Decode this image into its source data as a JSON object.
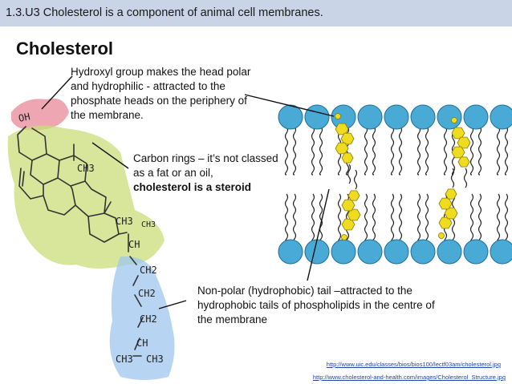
{
  "header": {
    "title": "1.3.U3 Cholesterol is a component of animal cell membranes."
  },
  "slide": {
    "heading": "Cholesterol"
  },
  "annotations": {
    "hydroxyl": "Hydroxyl group makes the head polar and hydrophilic - attracted to the phosphate heads on the periphery of the membrane.",
    "rings_plain": "Carbon rings – it’s not classed as a fat or an oil,",
    "rings_bold": "cholesterol is a steroid",
    "tail": "Non-polar (hydrophobic) tail –attracted to the hydrophobic tails of phospholipids in the centre of the membrane"
  },
  "structure_labels": {
    "oh": "OH",
    "ch3_a": "CH3",
    "ch3_b": "CH3",
    "ch3_c": "CH3",
    "ch_a": "CH",
    "ch2_a": "CH2",
    "ch2_b": "CH2",
    "ch2_c": "CH2",
    "ch_b": "CH",
    "ch3_d": "CH3",
    "ch3_e": "CH3"
  },
  "sources": [
    "http://www.uic.edu/classes/bios/bios100/lectf03am/cholesterol.jpg",
    "http://www.cholesterol-and-health.com/images/Cholesterol_Structure.jpg"
  ],
  "colors": {
    "header_bg": "#c9d4e6",
    "hydroxyl_highlight": "#e88a98",
    "rings_highlight": "#c9dd7a",
    "tail_highlight": "#9fc7ee",
    "phospholipid_head": "#4aaad6",
    "cholesterol_ring": "#f0dc1e"
  }
}
